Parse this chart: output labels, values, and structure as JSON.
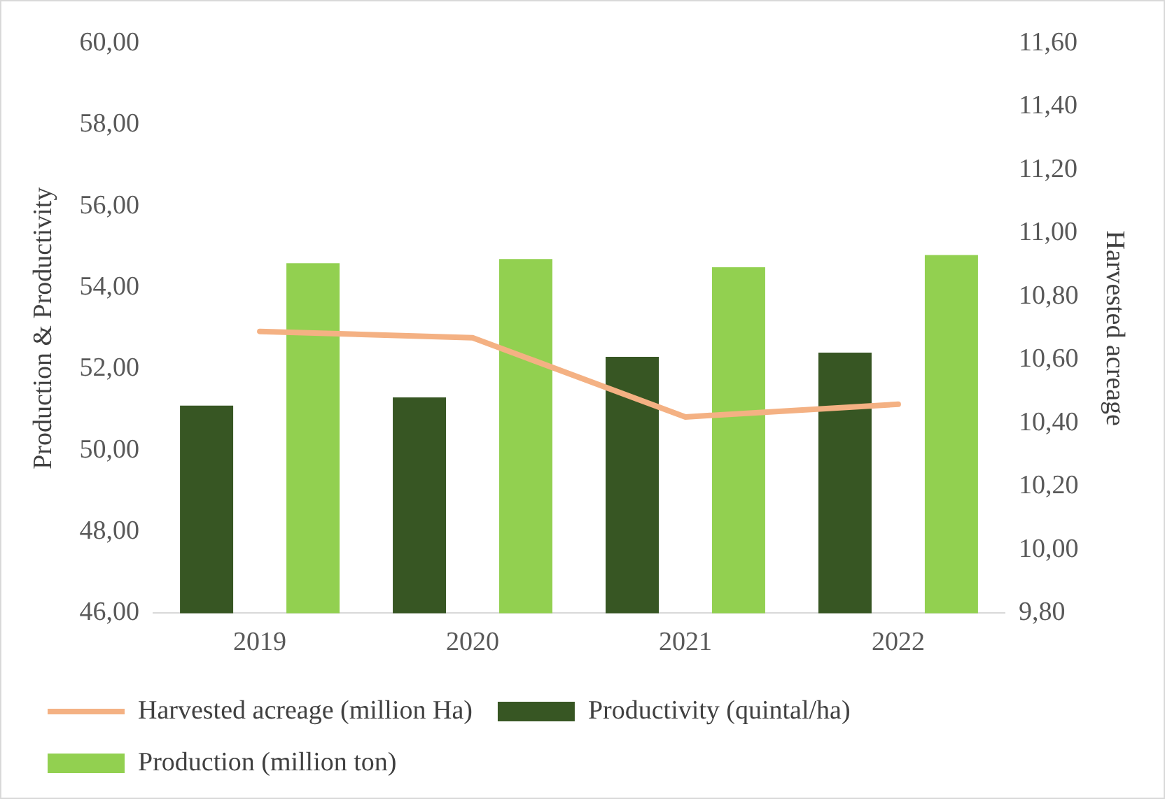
{
  "chart_data": {
    "type": "bar",
    "ylabel": "Production & Productivity",
    "y2label": "Harvested acreage",
    "categories": [
      "2019",
      "2020",
      "2021",
      "2022"
    ],
    "series": [
      {
        "name": "Productivity (quintal/ha)",
        "color": "#375623",
        "values": [
          51.1,
          51.3,
          52.3,
          52.4
        ]
      },
      {
        "name": "Production (million ton)",
        "color": "#92d050",
        "values": [
          54.6,
          54.7,
          54.5,
          54.8
        ]
      },
      {
        "name": "Harvested acreage (million Ha)",
        "type": "line",
        "axis": "y2",
        "color": "#f4b183",
        "values": [
          10.69,
          10.67,
          10.42,
          10.46
        ]
      }
    ],
    "ylim": [
      46,
      60
    ],
    "yticks": [
      {
        "value": 46,
        "label": "46,00"
      },
      {
        "value": 48,
        "label": "48,00"
      },
      {
        "value": 50,
        "label": "50,00"
      },
      {
        "value": 52,
        "label": "52,00"
      },
      {
        "value": 54,
        "label": "54,00"
      },
      {
        "value": 56,
        "label": "56,00"
      },
      {
        "value": 58,
        "label": "58,00"
      },
      {
        "value": 60,
        "label": "60,00"
      }
    ],
    "y2lim": [
      9.8,
      11.6
    ],
    "y2ticks": [
      {
        "value": 9.8,
        "label": "9,80"
      },
      {
        "value": 10,
        "label": "10,00"
      },
      {
        "value": 10.2,
        "label": "10,20"
      },
      {
        "value": 10.4,
        "label": "10,40"
      },
      {
        "value": 10.6,
        "label": "10,60"
      },
      {
        "value": 10.8,
        "label": "10,80"
      },
      {
        "value": 11,
        "label": "11,00"
      },
      {
        "value": 11.2,
        "label": "11,20"
      },
      {
        "value": 11.4,
        "label": "11,40"
      },
      {
        "value": 11.6,
        "label": "11,60"
      }
    ],
    "grid": false,
    "legend": "bottom"
  }
}
